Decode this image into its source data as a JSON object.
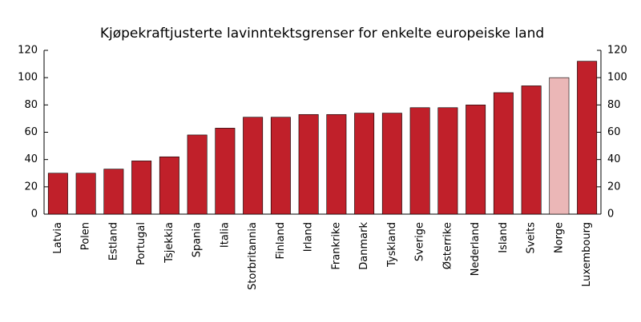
{
  "chart_data": {
    "type": "bar",
    "title": "Kjøpekraftjusterte lavinntektsgrenser for enkelte europeiske land",
    "categories": [
      "Latvia",
      "Polen",
      "Estland",
      "Portugal",
      "Tsjekkia",
      "Spania",
      "Italia",
      "Storbritannia",
      "Finland",
      "Irland",
      "Frankrike",
      "Danmark",
      "Tyskland",
      "Sverige",
      "Østerrike",
      "Nederland",
      "Island",
      "Sveits",
      "Norge",
      "Luxembourg"
    ],
    "values": [
      30,
      30,
      33,
      39,
      42,
      58,
      63,
      71,
      71,
      73,
      73,
      74,
      74,
      78,
      78,
      80,
      89,
      94,
      100,
      112
    ],
    "colors": [
      "#c0202a",
      "#c0202a",
      "#c0202a",
      "#c0202a",
      "#c0202a",
      "#c0202a",
      "#c0202a",
      "#c0202a",
      "#c0202a",
      "#c0202a",
      "#c0202a",
      "#c0202a",
      "#c0202a",
      "#c0202a",
      "#c0202a",
      "#c0202a",
      "#c0202a",
      "#c0202a",
      "#ebb7b7",
      "#c0202a"
    ],
    "ylim": [
      0,
      120
    ],
    "yticks": [
      0,
      20,
      40,
      60,
      80,
      100,
      120
    ],
    "y2lim": [
      0,
      120
    ],
    "y2ticks": [
      0,
      20,
      40,
      60,
      80,
      100,
      120
    ]
  }
}
